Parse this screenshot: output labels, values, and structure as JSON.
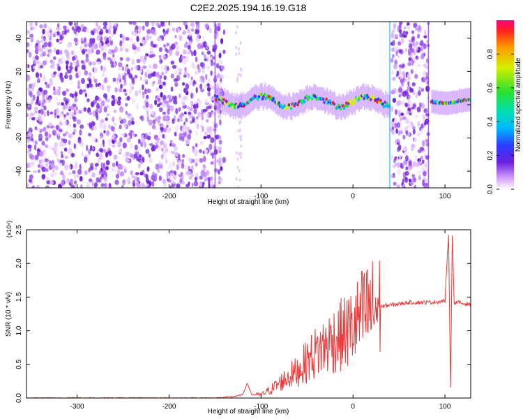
{
  "figure_title": "C2E2.2025.194.16.19.G18",
  "colors": {
    "snr_line": "#e83a3a",
    "spectral_dots": "#7a2fe0",
    "background": "#ffffff"
  },
  "colorbar": {
    "label": "Normalized spectral amplitude",
    "ticks": [
      "0.0",
      "0.2",
      "0.4",
      "0.6",
      "0.8"
    ],
    "range": [
      0,
      1
    ]
  },
  "chart_data": [
    {
      "type": "heatmap",
      "title": "C2E2.2025.194.16.19.G18",
      "xlabel": "Height of straight line (km)",
      "ylabel": "Frequency (Hz)",
      "xlim": [
        -355,
        128
      ],
      "ylim": [
        -50,
        50
      ],
      "x_ticks": [
        "-300",
        "-200",
        "-100",
        "0",
        "100"
      ],
      "y_ticks": [
        "-40",
        "-20",
        "0",
        "20",
        "40"
      ],
      "colormap": "normalized spectral amplitude 0-1",
      "regions": [
        {
          "description": "broadband noise",
          "x": [
            -355,
            -140
          ],
          "amplitude": 0.1
        },
        {
          "description": "narrow band near 0 Hz",
          "x": [
            -150,
            40
          ],
          "freq": [
            -5,
            10
          ],
          "amplitude": 0.5
        },
        {
          "description": "broadband burst",
          "x": [
            42,
            82
          ],
          "amplitude": 0.1
        },
        {
          "description": "narrow band near 0 Hz",
          "x": [
            85,
            128
          ],
          "freq": [
            -3,
            4
          ],
          "amplitude": 0.6
        }
      ]
    },
    {
      "type": "line",
      "xlabel": "Height of straight line (km)",
      "ylabel": "SNR (10 * v/v)",
      "y_multiplier": "(x10⁴)",
      "xlim": [
        -355,
        128
      ],
      "ylim": [
        0,
        2.5
      ],
      "x_ticks": [
        "-300",
        "-200",
        "-100",
        "0",
        "100"
      ],
      "y_ticks": [
        "0.0",
        "0.5",
        "1.0",
        "1.5",
        "2.0",
        "2.5"
      ],
      "series": [
        {
          "x": [
            -355,
            -300,
            -250,
            -200,
            -150,
            -130,
            -120,
            -115,
            -110,
            -100,
            -90,
            -80,
            -70,
            -60,
            -50,
            -40,
            -30,
            -20,
            -10,
            0,
            10,
            20,
            30,
            40,
            50,
            60,
            70,
            80,
            90,
            100,
            104,
            106,
            108,
            110,
            115,
            120,
            128
          ],
          "y": [
            0.0,
            0.0,
            0.0,
            0.0,
            0.0,
            0.02,
            0.05,
            0.22,
            0.05,
            0.05,
            0.12,
            0.22,
            0.32,
            0.4,
            0.55,
            0.68,
            0.78,
            0.88,
            0.95,
            1.05,
            1.22,
            1.32,
            1.36,
            1.38,
            1.4,
            1.42,
            1.42,
            1.42,
            1.43,
            1.44,
            2.45,
            0.15,
            2.4,
            1.42,
            1.42,
            1.4,
            1.4
          ]
        }
      ]
    }
  ]
}
